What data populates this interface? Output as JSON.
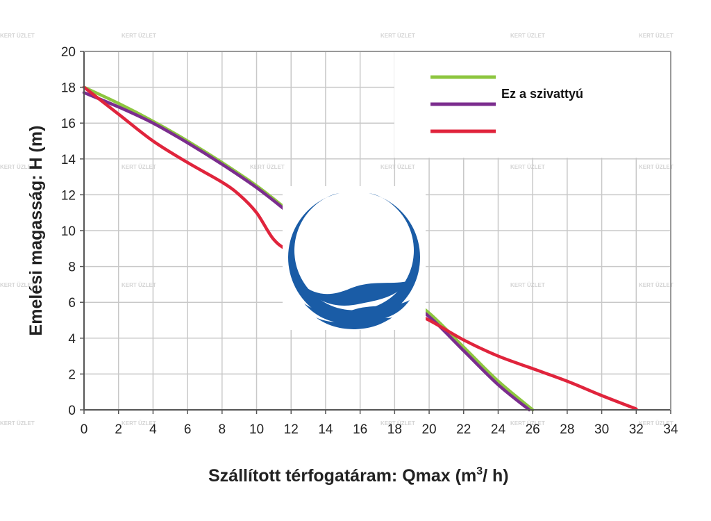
{
  "chart_data": {
    "type": "line",
    "title": "",
    "xlabel": "Szállított térfogatáram: Qmax (m",
    "xlabel_sup": "3",
    "xlabel_tail": "/ h)",
    "ylabel": "Emelési magasság: H (m)",
    "xlim": [
      0,
      34
    ],
    "ylim": [
      0,
      20
    ],
    "xticks": [
      0,
      2,
      4,
      6,
      8,
      10,
      12,
      14,
      16,
      18,
      20,
      22,
      24,
      26,
      28,
      30,
      32,
      34
    ],
    "yticks": [
      0,
      2,
      4,
      6,
      8,
      10,
      12,
      14,
      16,
      18,
      20
    ],
    "grid": true,
    "legend_position": "top-right",
    "series": [
      {
        "name": "",
        "color": "#8dc63f",
        "points": [
          [
            0,
            18
          ],
          [
            2,
            17.1
          ],
          [
            4,
            16.1
          ],
          [
            6,
            15
          ],
          [
            8,
            13.8
          ],
          [
            10,
            12.5
          ],
          [
            12,
            11
          ],
          [
            14,
            9.5
          ],
          [
            16,
            8.1
          ],
          [
            18,
            6.8
          ],
          [
            20,
            5.4
          ],
          [
            22,
            3.5
          ],
          [
            24,
            1.6
          ],
          [
            26,
            0
          ]
        ]
      },
      {
        "name": "Ez a szivattyú",
        "color": "#7b2d8e",
        "points": [
          [
            0,
            17.7
          ],
          [
            2,
            16.9
          ],
          [
            4,
            16
          ],
          [
            6,
            14.9
          ],
          [
            8,
            13.7
          ],
          [
            10,
            12.4
          ],
          [
            12,
            10.9
          ],
          [
            14,
            9.4
          ],
          [
            16,
            8
          ],
          [
            18,
            6.6
          ],
          [
            20,
            5.2
          ],
          [
            22,
            3.3
          ],
          [
            24,
            1.4
          ],
          [
            25.8,
            0
          ]
        ]
      },
      {
        "name": "",
        "color": "#e0243c",
        "points": [
          [
            0,
            18
          ],
          [
            2,
            16.5
          ],
          [
            4,
            15
          ],
          [
            6,
            13.8
          ],
          [
            8,
            12.7
          ],
          [
            9,
            12
          ],
          [
            10,
            11
          ],
          [
            11,
            9.5
          ],
          [
            12,
            8.8
          ],
          [
            14,
            7.8
          ],
          [
            16,
            6.8
          ],
          [
            18,
            5.9
          ],
          [
            20,
            5.0
          ],
          [
            22,
            3.9
          ],
          [
            24,
            3.0
          ],
          [
            26,
            2.3
          ],
          [
            28,
            1.6
          ],
          [
            30,
            0.8
          ],
          [
            32,
            0.05
          ]
        ]
      }
    ]
  },
  "legend": {
    "label": "Ez a szivattyú"
  },
  "logo": {
    "color": "#1a5ca6"
  },
  "watermark": {
    "text": "KERT ÜZLET"
  }
}
